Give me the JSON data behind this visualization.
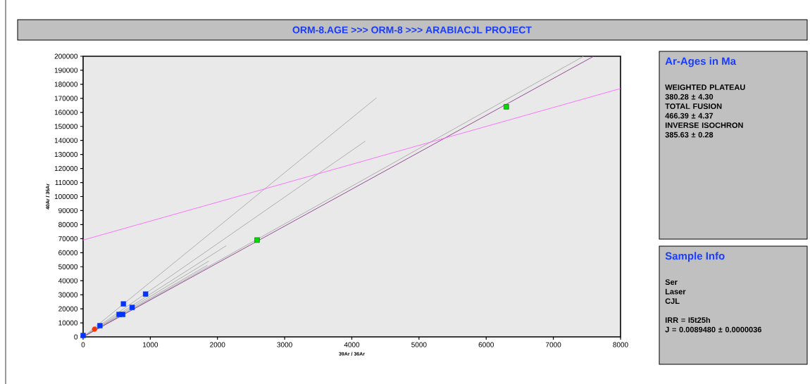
{
  "chart_data": {
    "type": "scatter",
    "title": "ORM-8.AGE   >>>   ORM-8   >>>   ARABIACJL PROJECT",
    "xlabel": "39Ar / 36Ar",
    "ylabel": "40Ar / 36Ar",
    "xlim": [
      0,
      8000
    ],
    "xticks": [
      0,
      1000,
      2000,
      3000,
      4000,
      5000,
      6000,
      7000,
      8000
    ],
    "ylim": [
      0,
      200000
    ],
    "yticks": [
      0,
      10000,
      20000,
      30000,
      40000,
      50000,
      60000,
      70000,
      80000,
      90000,
      100000,
      110000,
      120000,
      130000,
      140000,
      150000,
      160000,
      170000,
      180000,
      190000,
      200000
    ],
    "grid": false,
    "series": [
      {
        "type": "line",
        "color": "#a8a8a8",
        "x": [
          0,
          4370
        ],
        "values": [
          0,
          170500
        ]
      },
      {
        "type": "line",
        "color": "#a8a8a8",
        "x": [
          0,
          4200
        ],
        "values": [
          0,
          139500
        ]
      },
      {
        "type": "line",
        "color": "#a8a8a8",
        "x": [
          0,
          2130
        ],
        "values": [
          0,
          65000
        ]
      },
      {
        "type": "line",
        "color": "#a8a8a8",
        "x": [
          0,
          1870
        ],
        "values": [
          0,
          54000
        ]
      },
      {
        "type": "line",
        "color": "#a8a8a8",
        "x": [
          0,
          1850
        ],
        "values": [
          0,
          51000
        ]
      },
      {
        "type": "line",
        "color": "#a8a8a8",
        "x": [
          0,
          7450
        ],
        "values": [
          0,
          200000
        ]
      },
      {
        "type": "line",
        "color": "#8b3a8b",
        "x": [
          0,
          7600
        ],
        "values": [
          0,
          200000
        ]
      },
      {
        "type": "line",
        "color": "#ff66ff",
        "x": [
          0,
          8000
        ],
        "values": [
          69000,
          177000
        ]
      },
      {
        "type": "scatter",
        "marker": "square",
        "color": "#0033ff",
        "x": [
          0,
          250,
          535,
          590,
          600,
          730,
          930
        ],
        "values": [
          1000,
          8000,
          16000,
          16000,
          23500,
          21000,
          30500
        ]
      },
      {
        "type": "scatter",
        "marker": "circle",
        "color": "#ff3300",
        "x": [
          170
        ],
        "values": [
          5500
        ]
      },
      {
        "type": "scatter",
        "marker": "square",
        "color": "#00dd00",
        "x": [
          2590,
          6300
        ],
        "values": [
          69000,
          164000
        ]
      }
    ],
    "annotations": [
      "Ar-Ages in Ma",
      "WEIGHTED PLATEAU",
      "380.28 ± 4.30",
      "TOTAL FUSION",
      "466.39 ± 4.37",
      "INVERSE ISOCHRON",
      "385.63 ± 0.28",
      "Sample Info",
      "Ser",
      "Laser",
      "CJL",
      "IRR  =  I5t25h",
      "J  =  0.0089480 ± 0.0000036"
    ]
  }
}
